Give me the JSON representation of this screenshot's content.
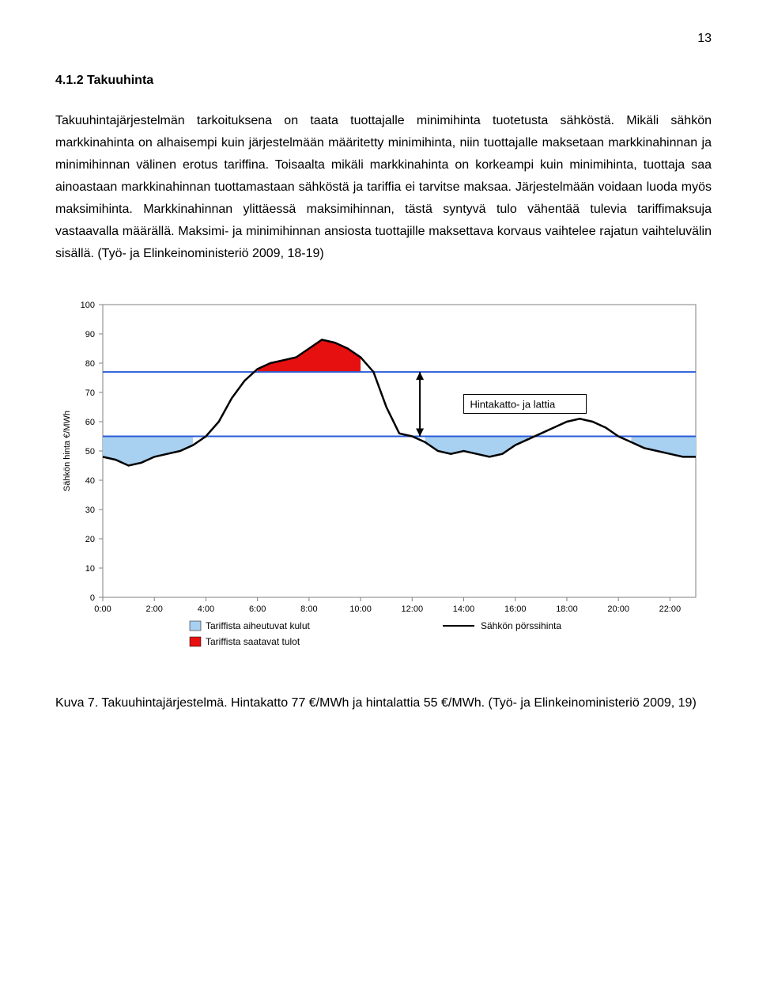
{
  "page_number": "13",
  "heading": "4.1.2  Takuuhinta",
  "body": "Takuuhintajärjestelmän tarkoituksena on taata tuottajalle minimihinta tuotetusta sähköstä. Mikäli sähkön markkinahinta on alhaisempi kuin järjestelmään määritetty minimihinta, niin tuottajalle maksetaan markkinahinnan ja minimihinnan välinen erotus tariffina. Toisaalta mikäli markkinahinta on korkeampi kuin minimihinta, tuottaja saa ainoastaan markkinahinnan tuottamastaan sähköstä ja tariffia ei tarvitse maksaa. Järjestelmään voidaan luoda myös maksimihinta. Markkinahinnan ylittäessä maksimihinnan, tästä syntyvä tulo vähentää tulevia tariffimaksuja vastaavalla määrällä. Maksimi- ja minimihinnan ansiosta tuottajille maksettava korvaus vaihtelee rajatun vaihteluvälin sisällä. (Työ- ja Elinkeinoministeriö 2009, 18-19)",
  "caption": "Kuva 7. Takuuhintajärjestelmä. Hintakatto 77 €/MWh ja hintalattia 55 €/MWh. (Työ- ja Elinkeinoministeriö 2009, 19)",
  "chart": {
    "type": "area-line",
    "y_axis_label": "Sähkön hinta €/MWh",
    "y_min": 0,
    "y_max": 100,
    "y_tick_step": 10,
    "x_ticks": [
      "0:00",
      "2:00",
      "4:00",
      "6:00",
      "8:00",
      "10:00",
      "12:00",
      "14:00",
      "16:00",
      "18:00",
      "20:00",
      "22:00"
    ],
    "ceiling": 77,
    "floor": 55,
    "ceiling_color": "#2a5bd7",
    "floor_color": "#2a5bd7",
    "line_color": "#000000",
    "line_width": 2.5,
    "expense_fill": "#a8d0f0",
    "income_fill": "#e61010",
    "background": "#ffffff",
    "plot_border_color": "#808080",
    "tick_font_size": 11,
    "label_text": "Hintakatto- ja lattia",
    "label_box_border": "#000000",
    "label_box_bg": "#ffffff",
    "legend": {
      "expense": "Tariffista aiheutuvat kulut",
      "income": "Tariffista saatavat tulot",
      "line": "Sähkön pörssihinta"
    },
    "price_series": [
      {
        "t": 0.0,
        "v": 48
      },
      {
        "t": 0.5,
        "v": 47
      },
      {
        "t": 1.0,
        "v": 45
      },
      {
        "t": 1.5,
        "v": 46
      },
      {
        "t": 2.0,
        "v": 48
      },
      {
        "t": 2.5,
        "v": 49
      },
      {
        "t": 3.0,
        "v": 50
      },
      {
        "t": 3.5,
        "v": 52
      },
      {
        "t": 4.0,
        "v": 55
      },
      {
        "t": 4.5,
        "v": 60
      },
      {
        "t": 5.0,
        "v": 68
      },
      {
        "t": 5.5,
        "v": 74
      },
      {
        "t": 6.0,
        "v": 78
      },
      {
        "t": 6.5,
        "v": 80
      },
      {
        "t": 7.0,
        "v": 81
      },
      {
        "t": 7.5,
        "v": 82
      },
      {
        "t": 8.0,
        "v": 85
      },
      {
        "t": 8.5,
        "v": 88
      },
      {
        "t": 9.0,
        "v": 87
      },
      {
        "t": 9.5,
        "v": 85
      },
      {
        "t": 10.0,
        "v": 82
      },
      {
        "t": 10.5,
        "v": 77
      },
      {
        "t": 11.0,
        "v": 65
      },
      {
        "t": 11.5,
        "v": 56
      },
      {
        "t": 12.0,
        "v": 55
      },
      {
        "t": 12.5,
        "v": 53
      },
      {
        "t": 13.0,
        "v": 50
      },
      {
        "t": 13.5,
        "v": 49
      },
      {
        "t": 14.0,
        "v": 50
      },
      {
        "t": 14.5,
        "v": 49
      },
      {
        "t": 15.0,
        "v": 48
      },
      {
        "t": 15.5,
        "v": 49
      },
      {
        "t": 16.0,
        "v": 52
      },
      {
        "t": 16.5,
        "v": 54
      },
      {
        "t": 17.0,
        "v": 56
      },
      {
        "t": 17.5,
        "v": 58
      },
      {
        "t": 18.0,
        "v": 60
      },
      {
        "t": 18.5,
        "v": 61
      },
      {
        "t": 19.0,
        "v": 60
      },
      {
        "t": 19.5,
        "v": 58
      },
      {
        "t": 20.0,
        "v": 55
      },
      {
        "t": 20.5,
        "v": 53
      },
      {
        "t": 21.0,
        "v": 51
      },
      {
        "t": 21.5,
        "v": 50
      },
      {
        "t": 22.0,
        "v": 49
      },
      {
        "t": 22.5,
        "v": 48
      },
      {
        "t": 23.0,
        "v": 48
      }
    ]
  }
}
